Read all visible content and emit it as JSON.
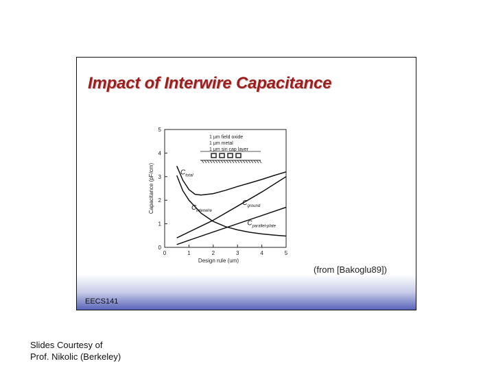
{
  "slide": {
    "title": "Impact of Interwire Capacitance",
    "citation": "(from [Bakoglu89])",
    "footer": "EECS141"
  },
  "courtesy": {
    "line1": "Slides Courtesy of",
    "line2": "Prof. Nikolic (Berkeley)"
  },
  "chart_data": {
    "type": "line",
    "title": "",
    "xlabel": "Design rule (um)",
    "ylabel": "Capacitance (pF/cm)",
    "xlim": [
      0,
      5
    ],
    "ylim": [
      0,
      5
    ],
    "xticks": [
      "0",
      "1",
      "2",
      "3",
      "4",
      "5"
    ],
    "yticks": [
      "0",
      "1",
      "2",
      "3",
      "4",
      "5"
    ],
    "legend": [
      "1 μm field oxide",
      "1 μm metal",
      "1 μm sin cap layer"
    ],
    "series": [
      {
        "name": "C_total",
        "x": [
          0.5,
          0.75,
          1.0,
          1.25,
          1.5,
          2.0,
          2.5,
          3.0,
          3.5,
          4.0,
          4.5,
          5.0
        ],
        "y": [
          3.45,
          2.85,
          2.45,
          2.25,
          2.22,
          2.28,
          2.42,
          2.58,
          2.73,
          2.88,
          3.05,
          3.2
        ]
      },
      {
        "name": "C_interwire",
        "x": [
          0.5,
          0.75,
          1.0,
          1.5,
          2.0,
          2.5,
          3.0,
          3.5,
          4.0,
          4.5,
          5.0
        ],
        "y": [
          3.05,
          2.4,
          2.0,
          1.45,
          1.1,
          0.88,
          0.74,
          0.64,
          0.57,
          0.52,
          0.48
        ]
      },
      {
        "name": "C_ground",
        "x": [
          0.5,
          1.0,
          2.0,
          3.0,
          4.0,
          5.0
        ],
        "y": [
          0.4,
          0.65,
          1.15,
          1.75,
          2.35,
          3.0
        ]
      },
      {
        "name": "C_parallel-plate",
        "x": [
          0.5,
          1.0,
          2.0,
          3.0,
          4.0,
          5.0
        ],
        "y": [
          0.12,
          0.3,
          0.65,
          1.0,
          1.35,
          1.7
        ]
      }
    ],
    "series_labels": {
      "C_total": {
        "main": "C",
        "sub": "total"
      },
      "C_interwire": {
        "main": "C",
        "sub": "interwire"
      },
      "C_ground": {
        "main": "C",
        "sub": "ground"
      },
      "C_parallel-plate": {
        "main": "C",
        "sub": "parallel-plate"
      }
    }
  }
}
